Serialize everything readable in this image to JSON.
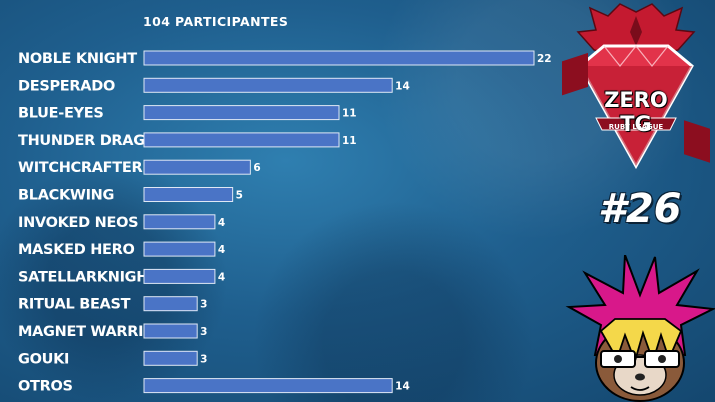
{
  "subtitle": "104 PARTICIPANTES",
  "logo": {
    "title": "ZERO TG",
    "subtitle": "RUBY LEAGUE"
  },
  "episode": "#26",
  "chart_data": {
    "type": "bar",
    "orientation": "horizontal",
    "title": "",
    "categories": [
      "NOBLE KNIGHT",
      "DESPERADO",
      "BLUE-EYES",
      "THUNDER DRAGON",
      "WITCHCRAFTER",
      "BLACKWING",
      "INVOKED NEOS",
      "MASKED HERO",
      "SATELLARKNIGHT",
      "RITUAL BEAST",
      "MAGNET WARRIOR",
      "GOUKI",
      "OTROS"
    ],
    "values": [
      22,
      14,
      11,
      11,
      6,
      5,
      4,
      4,
      4,
      3,
      3,
      3,
      14
    ],
    "xlim": [
      0,
      22
    ],
    "grid": false,
    "bar_color": "#4a74c6"
  },
  "colors": {
    "logo_red": "#d9233a",
    "bar": "#4a74c6"
  }
}
